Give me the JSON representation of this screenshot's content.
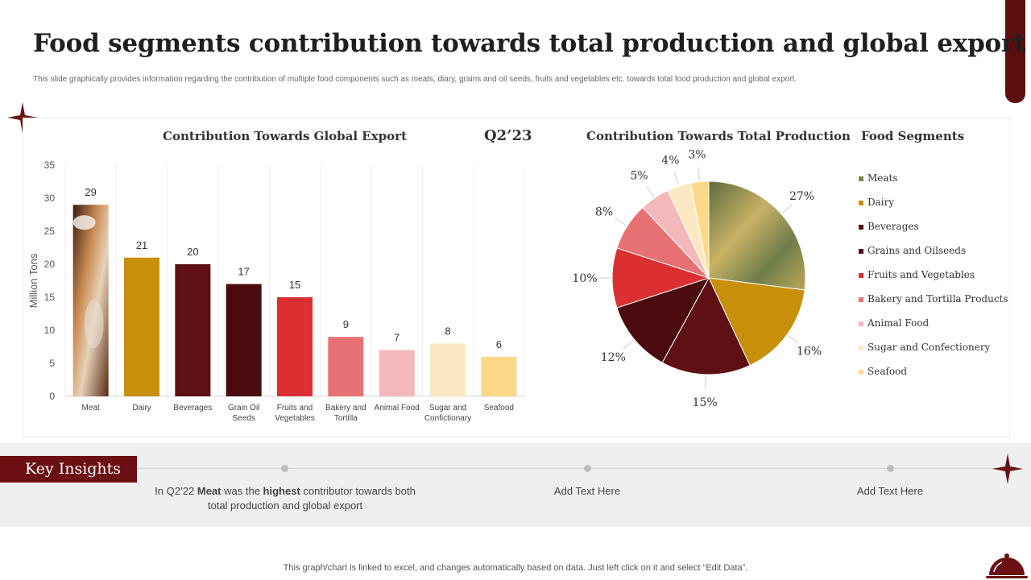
{
  "title": "Food segments contribution towards total production and global export",
  "subtitle": "This slide graphically provides information regarding the contribution of multiple food components such as meats, diary, grains and oil seeds, fruits and vegetables etc. towards total food production and global export.",
  "quarter_label": "Q2’23",
  "legend_title": "Food Segments",
  "chart_data": [
    {
      "type": "bar",
      "title": "Contribution Towards Global Export",
      "ylabel": "Million Tons",
      "xlabel": "",
      "ylim": [
        0,
        35
      ],
      "yticks": [
        0,
        5,
        10,
        15,
        20,
        25,
        30,
        35
      ],
      "grid": true,
      "categories": [
        "Meat",
        "Dairy",
        "Beverages",
        "Grain Oil Seeds",
        "Fruits and Vegetables",
        "Bakery and Tortilla",
        "Animal Food",
        "Sugar and Confictionary",
        "Seafood"
      ],
      "category_lines": [
        [
          "Meat"
        ],
        [
          "Dairy"
        ],
        [
          "Beverages"
        ],
        [
          "Grain Oil",
          "Seeds"
        ],
        [
          "Fruits and",
          "Vegetables"
        ],
        [
          "Bakery and",
          "Tortilla"
        ],
        [
          "Animal Food"
        ],
        [
          "Sugar and",
          "Confictionary"
        ],
        [
          "Seafood"
        ]
      ],
      "values": [
        29,
        21,
        20,
        17,
        15,
        9,
        7,
        8,
        6
      ],
      "colors": [
        "#7a3b22",
        "#c8900a",
        "#5f1014",
        "#4a0b0f",
        "#dc2f31",
        "#e87273",
        "#f4b8bb",
        "#fde8c2",
        "#fbd88a"
      ]
    },
    {
      "type": "pie",
      "title": "Contribution Towards Total Production",
      "labels": [
        "Meats",
        "Dairy",
        "Beverages",
        "Grains and Oilseeds",
        "Fruits and Vegetables",
        "Bakery and Tortilla Products",
        "Animal Food",
        "Sugar and Confectionery",
        "Seafood"
      ],
      "values": [
        27,
        16,
        15,
        12,
        10,
        8,
        5,
        4,
        3
      ],
      "value_labels": [
        "27%",
        "16%",
        "15%",
        "12%",
        "10%",
        "8%",
        "5%",
        "4%",
        "3%"
      ],
      "colors": [
        "#7b8b4a",
        "#c8900a",
        "#5f1014",
        "#4a0b0f",
        "#dc2f31",
        "#e87273",
        "#f4b8bb",
        "#fde8c2",
        "#fbd88a"
      ],
      "legend": "right"
    }
  ],
  "insights": {
    "label": "Key Insights",
    "item1": {
      "pre": "In Q2’22 ",
      "b1": "Meat",
      "mid": " was the ",
      "b2": "highest",
      "post": " contributor towards both total production and global export"
    },
    "item2": "Add Text Here",
    "item3": "Add Text Here"
  },
  "footnote": "This graph/chart is linked to excel, and changes automatically based on data. Just left click on it and select “Edit Data”."
}
